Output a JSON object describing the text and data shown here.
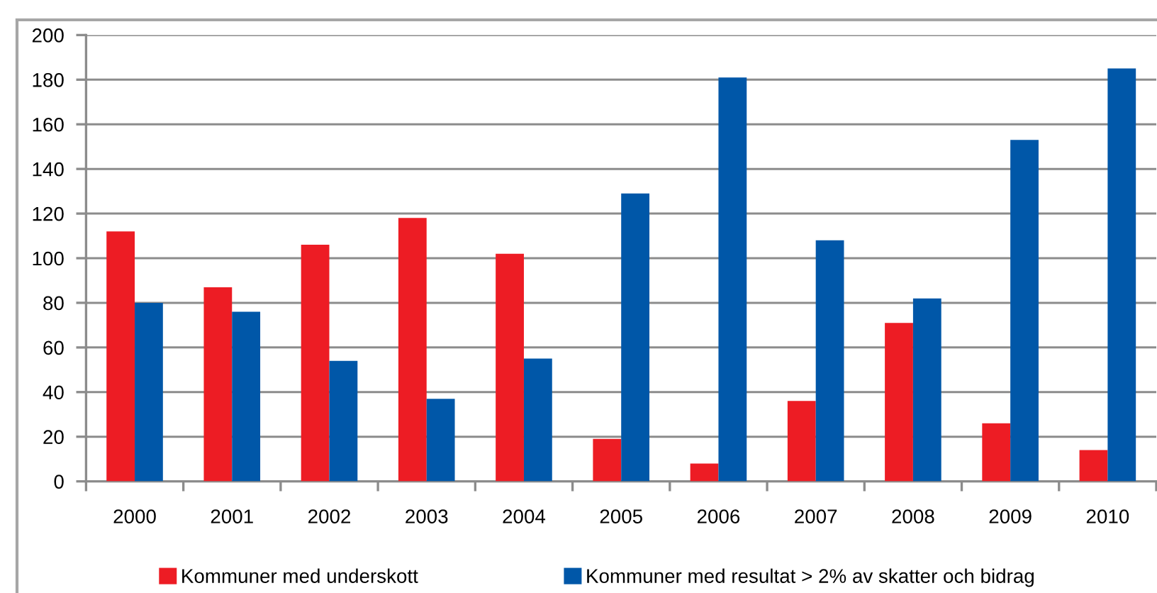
{
  "chart_data": {
    "type": "bar",
    "categories": [
      "2000",
      "2001",
      "2002",
      "2003",
      "2004",
      "2005",
      "2006",
      "2007",
      "2008",
      "2009",
      "2010"
    ],
    "series": [
      {
        "name": "Kommuner med underskott",
        "color": "#ed1c24",
        "values": [
          112,
          87,
          106,
          118,
          102,
          19,
          8,
          36,
          71,
          26,
          14
        ]
      },
      {
        "name": "Kommuner med resultat > 2% av skatter och bidrag",
        "color": "#0057a8",
        "values": [
          80,
          76,
          54,
          37,
          55,
          129,
          181,
          108,
          82,
          153,
          185
        ]
      }
    ],
    "ylim": [
      0,
      200
    ],
    "yticks": [
      0,
      20,
      40,
      60,
      80,
      100,
      120,
      140,
      160,
      180,
      200
    ],
    "grid": "y",
    "legend": "bottom"
  }
}
